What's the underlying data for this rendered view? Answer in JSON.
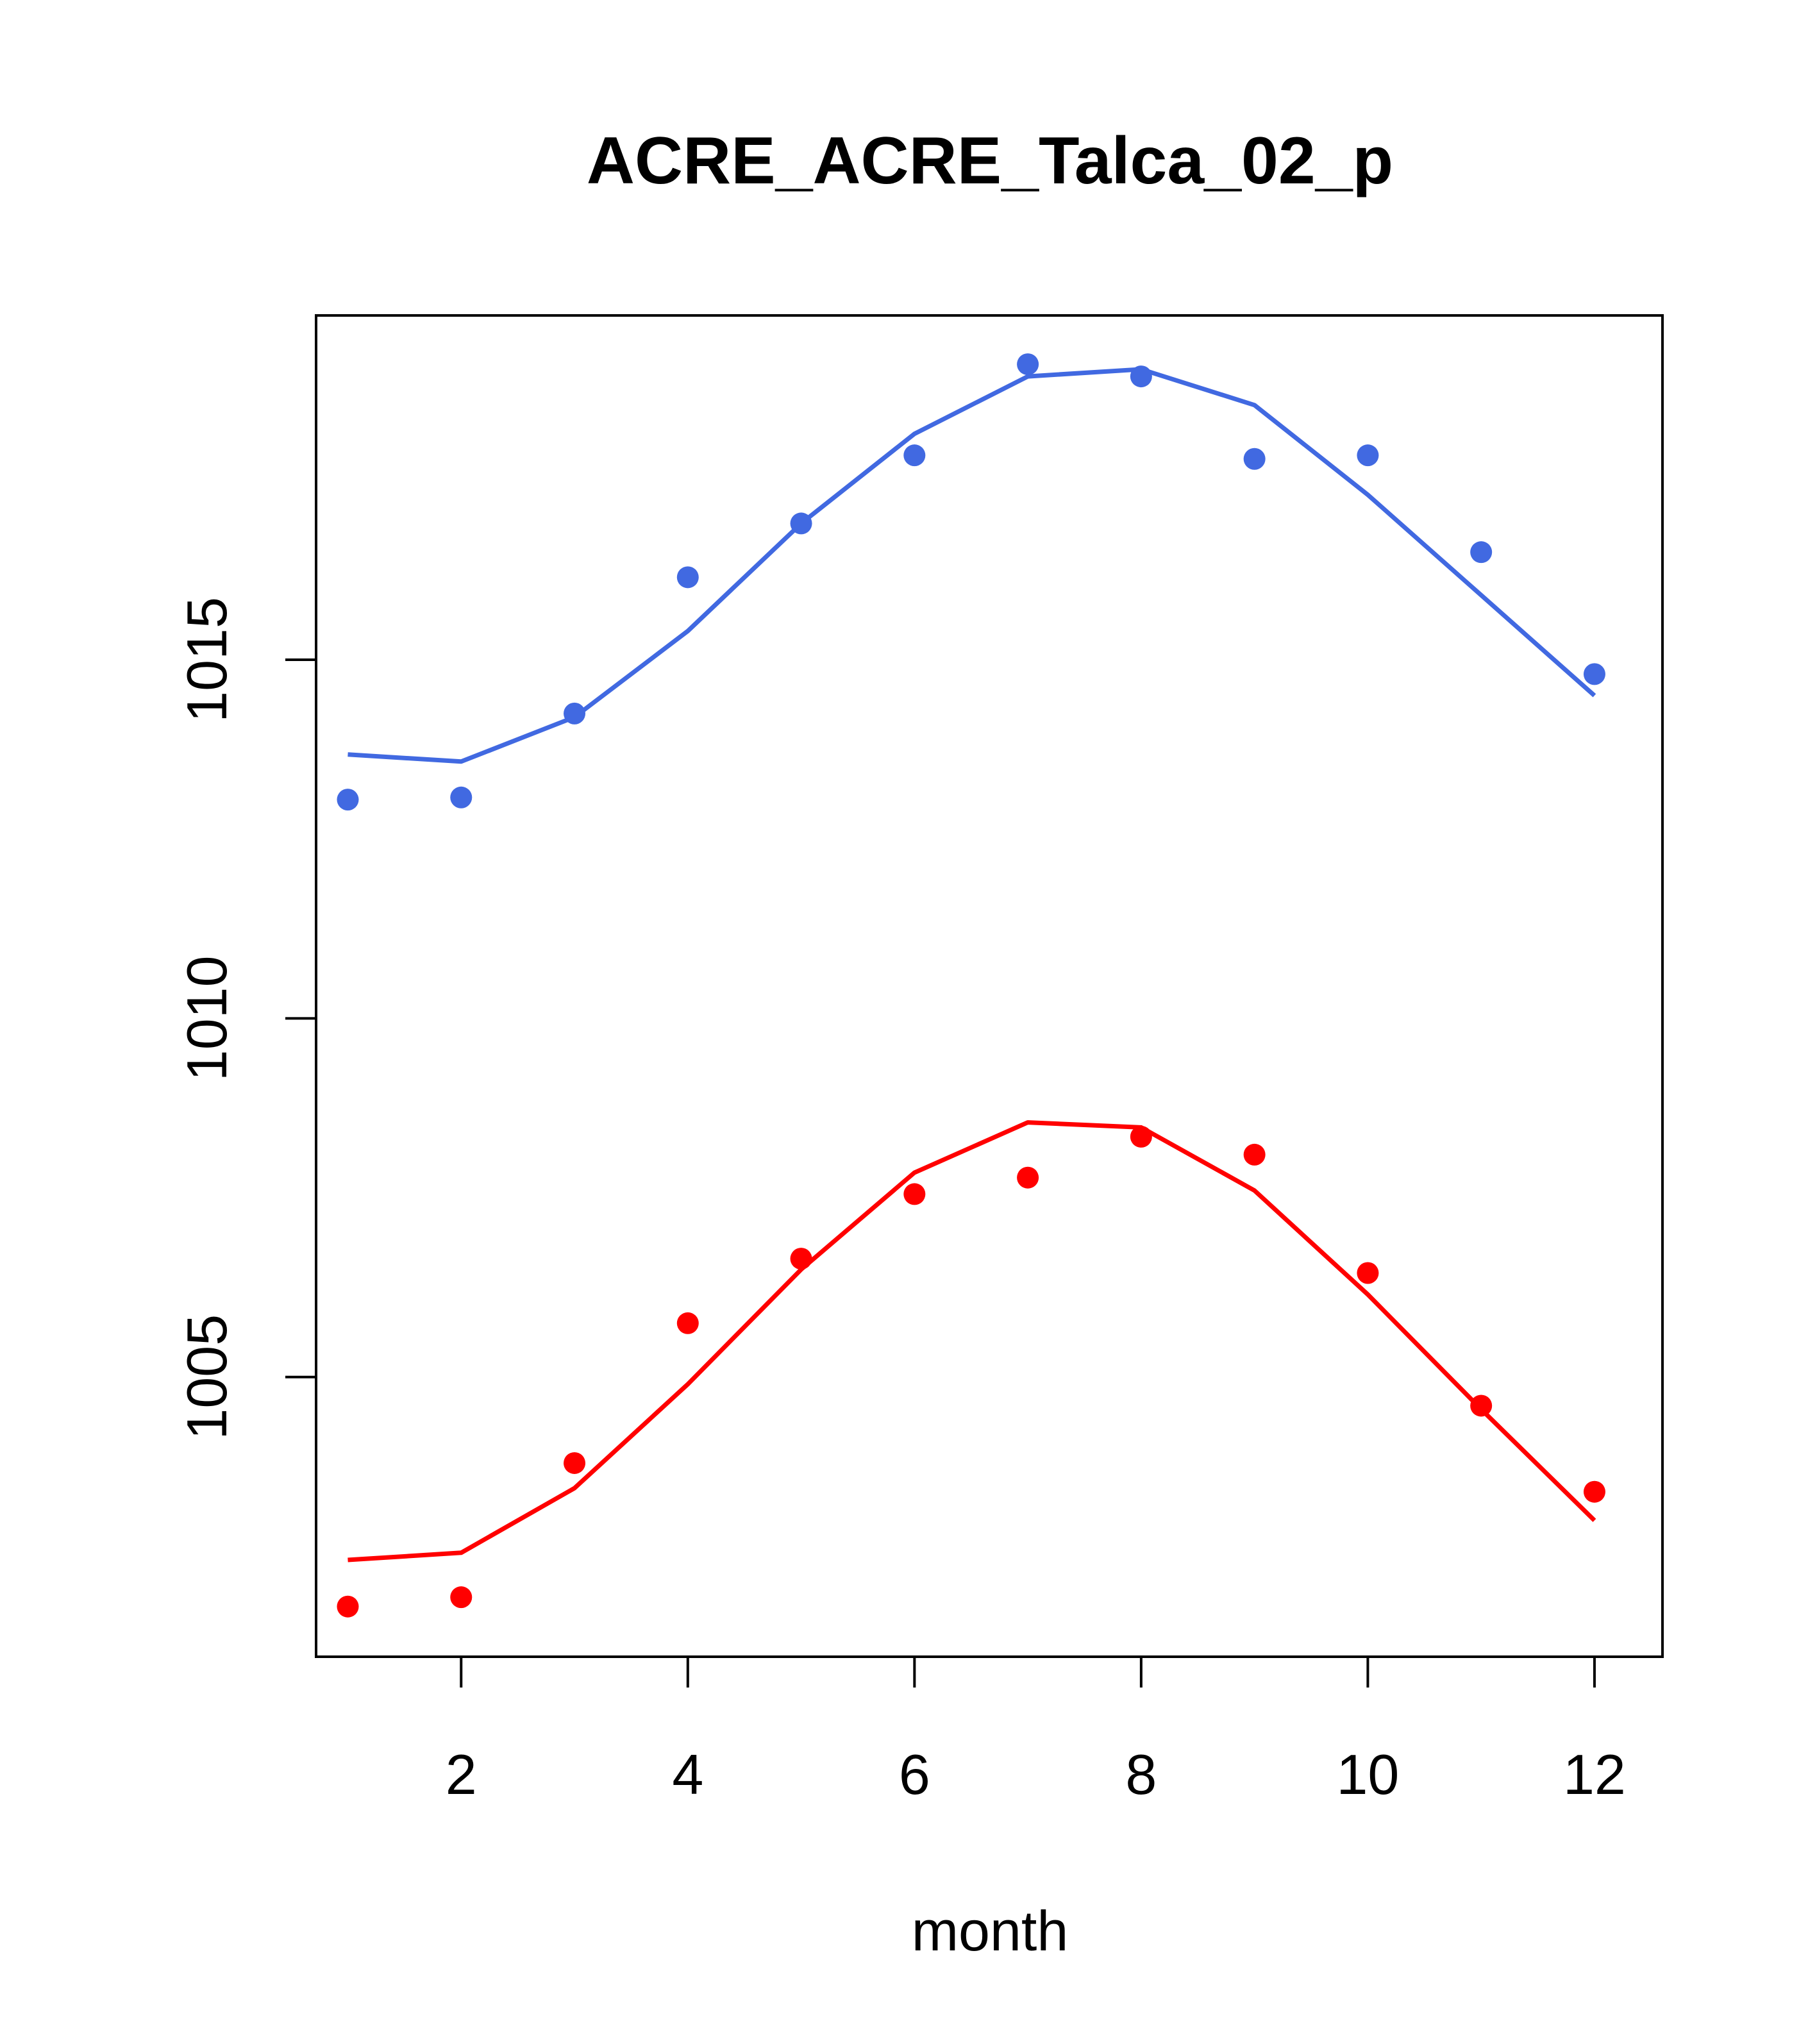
{
  "chart_data": {
    "type": "scatter",
    "title": "ACRE_ACRE_Talca_02_p",
    "xlabel": "month",
    "ylabel": "",
    "xlim": [
      0.72,
      12.6
    ],
    "ylim": [
      1001.1,
      1019.8
    ],
    "xticks": [
      2,
      4,
      6,
      8,
      10,
      12
    ],
    "yticks": [
      1005,
      1010,
      1015
    ],
    "series": [
      {
        "name": "series-blue",
        "color": "#4169E1",
        "x": [
          1,
          2,
          3,
          4,
          5,
          6,
          7,
          8,
          9,
          10,
          11,
          12
        ],
        "points": [
          1013.05,
          1013.08,
          1014.25,
          1016.15,
          1016.9,
          1017.85,
          1019.12,
          1018.95,
          1017.8,
          1017.85,
          1016.5,
          1014.8
        ],
        "fit": [
          1013.68,
          1013.58,
          1014.2,
          1015.4,
          1016.9,
          1018.15,
          1018.95,
          1019.05,
          1018.55,
          1017.3,
          1015.9,
          1014.5
        ]
      },
      {
        "name": "series-red",
        "color": "#FF0000",
        "x": [
          1,
          2,
          3,
          4,
          5,
          6,
          7,
          8,
          9,
          10,
          11,
          12
        ],
        "points": [
          1001.8,
          1001.93,
          1003.8,
          1005.75,
          1006.65,
          1007.55,
          1007.78,
          1008.35,
          1008.1,
          1006.45,
          1004.6,
          1003.4
        ],
        "fit": [
          1002.45,
          1002.55,
          1003.45,
          1004.9,
          1006.5,
          1007.85,
          1008.55,
          1008.48,
          1007.6,
          1006.15,
          1004.55,
          1003.0
        ]
      }
    ]
  }
}
